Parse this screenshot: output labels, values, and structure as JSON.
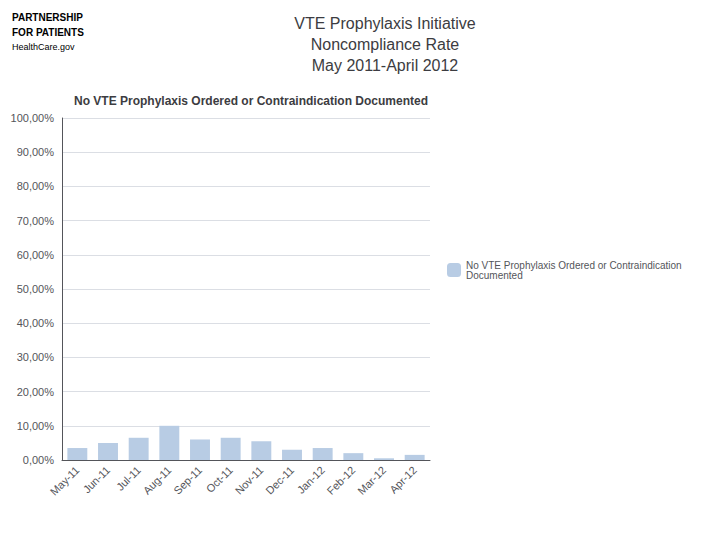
{
  "chart_data": {
    "type": "bar",
    "title": "VTE Prophylaxis Initiative\nNoncompliance Rate\nMay 2011-April 2012",
    "subtitle": "No VTE Prophylaxis Ordered or Contraindication Documented",
    "annotations": [
      "PARTNERSHIP",
      "FOR PATIENTS",
      "HealthCare.gov"
    ],
    "categories": [
      "May-11",
      "Jun-11",
      "Jul-11",
      "Aug-11",
      "Sep-11",
      "Oct-11",
      "Nov-11",
      "Dec-11",
      "Jan-12",
      "Feb-12",
      "Mar-12",
      "Apr-12"
    ],
    "series": [
      {
        "name": "No VTE Prophylaxis Ordered or Contraindication\nDocumented",
        "color": "#b8cce4",
        "values": [
          0.035,
          0.05,
          0.065,
          0.1,
          0.06,
          0.065,
          0.055,
          0.03,
          0.035,
          0.02,
          0.005,
          0.015
        ]
      }
    ],
    "ylim": [
      0,
      1.0
    ],
    "yticks": [
      {
        "value": 0.0,
        "label": "0,00%"
      },
      {
        "value": 0.1,
        "label": "10,00%"
      },
      {
        "value": 0.2,
        "label": "20,00%"
      },
      {
        "value": 0.3,
        "label": "30,00%"
      },
      {
        "value": 0.4,
        "label": "40,00%"
      },
      {
        "value": 0.5,
        "label": "50,00%"
      },
      {
        "value": 0.6,
        "label": "60,00%"
      },
      {
        "value": 0.7,
        "label": "70,00%"
      },
      {
        "value": 0.8,
        "label": "80,00%"
      },
      {
        "value": 0.9,
        "label": "90,00%"
      },
      {
        "value": 1.0,
        "label": "100,00%"
      }
    ],
    "grid": true,
    "legend": "right"
  }
}
